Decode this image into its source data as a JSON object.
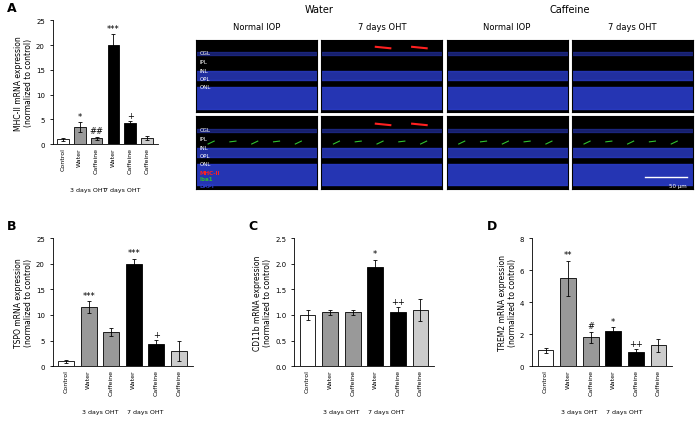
{
  "chart_data": [
    {
      "type": "bar",
      "panel": "A",
      "y_label": "MHC-II mRNA expression\n(normalized to control)",
      "categories": [
        "Control",
        "Water",
        "Caffeine",
        "Water",
        "Caffeine",
        "Caffeine"
      ],
      "group_labels": [
        null,
        "3 days OHT",
        "3 days OHT",
        "7 days OHT",
        "7 days OHT",
        null
      ],
      "values": [
        1.0,
        3.5,
        1.2,
        20.0,
        4.3,
        1.2
      ],
      "errors": [
        0.3,
        1.0,
        0.3,
        2.2,
        0.4,
        0.4
      ],
      "significance": [
        null,
        "*",
        "##",
        "***",
        "+",
        null
      ],
      "colors": [
        "#ffffff",
        "#999999",
        "#999999",
        "#000000",
        "#000000",
        "#cccccc"
      ],
      "ylim": [
        0,
        25
      ],
      "yticks": [
        0,
        5,
        10,
        15,
        20,
        25
      ]
    },
    {
      "type": "bar",
      "panel": "B",
      "y_label": "TSPO mRNA expression\n(normalized to control)",
      "categories": [
        "Control",
        "Water",
        "Caffeine",
        "Water",
        "Caffeine",
        "Caffeine"
      ],
      "group_labels": [
        null,
        "3 days OHT",
        "3 days OHT",
        "7 days OHT",
        "7 days OHT",
        null
      ],
      "values": [
        1.0,
        11.5,
        6.7,
        20.0,
        4.3,
        3.0
      ],
      "errors": [
        0.3,
        1.2,
        0.8,
        1.0,
        0.8,
        2.0
      ],
      "significance": [
        null,
        "***",
        null,
        "***",
        "+",
        null
      ],
      "colors": [
        "#ffffff",
        "#999999",
        "#999999",
        "#000000",
        "#000000",
        "#cccccc"
      ],
      "ylim": [
        0,
        25
      ],
      "yticks": [
        0,
        5,
        10,
        15,
        20,
        25
      ]
    },
    {
      "type": "bar",
      "panel": "C",
      "y_label": "CD11b mRNA expression\n(normalized to control)",
      "categories": [
        "Control",
        "Water",
        "Caffeine",
        "Water",
        "Caffeine",
        "Caffeine"
      ],
      "group_labels": [
        null,
        "3 days OHT",
        "3 days OHT",
        "7 days OHT",
        "7 days OHT",
        null
      ],
      "values": [
        1.0,
        1.05,
        1.05,
        1.93,
        1.05,
        1.1
      ],
      "errors": [
        0.1,
        0.05,
        0.05,
        0.15,
        0.1,
        0.22
      ],
      "significance": [
        null,
        null,
        null,
        "*",
        "++",
        null
      ],
      "colors": [
        "#ffffff",
        "#999999",
        "#999999",
        "#000000",
        "#000000",
        "#cccccc"
      ],
      "ylim": [
        0,
        2.5
      ],
      "yticks": [
        {
          "value": 0,
          "label": "0.0"
        },
        0.5,
        {
          "value": 1,
          "label": "1.0"
        },
        1.5,
        {
          "value": 2,
          "label": "2.0"
        },
        2.5
      ]
    },
    {
      "type": "bar",
      "panel": "D",
      "y_label": "TREM2 mRNA expression\n(normalized to control)",
      "categories": [
        "Control",
        "Water",
        "Caffeine",
        "Water",
        "Caffeine",
        "Caffeine"
      ],
      "group_labels": [
        null,
        "3 days OHT",
        "3 days OHT",
        "7 days OHT",
        "7 days OHT",
        null
      ],
      "values": [
        1.0,
        5.5,
        1.8,
        2.2,
        0.9,
        1.3
      ],
      "errors": [
        0.15,
        1.1,
        0.35,
        0.25,
        0.15,
        0.4
      ],
      "significance": [
        null,
        "**",
        "#",
        "*",
        "++",
        null
      ],
      "colors": [
        "#ffffff",
        "#999999",
        "#999999",
        "#000000",
        "#000000",
        "#cccccc"
      ],
      "ylim": [
        0,
        8
      ],
      "yticks": [
        0,
        2,
        4,
        6,
        8
      ]
    }
  ],
  "micrographs": {
    "groups": [
      {
        "label": "Water",
        "conditions": [
          "Normal IOP",
          "7 days OHT"
        ]
      },
      {
        "label": "Caffeine",
        "conditions": [
          "Normal IOP",
          "7 days OHT"
        ]
      }
    ],
    "layers": [
      "CGL",
      "IPL",
      "INL",
      "OPL",
      "ONL"
    ],
    "channels": [
      {
        "name": "MHC-II",
        "color": "#ff2020"
      },
      {
        "name": "Iba1",
        "color": "#30c030"
      },
      {
        "name": "DAPI",
        "color": "#2a3cc8"
      }
    ],
    "scale_bar": "50 µm"
  }
}
